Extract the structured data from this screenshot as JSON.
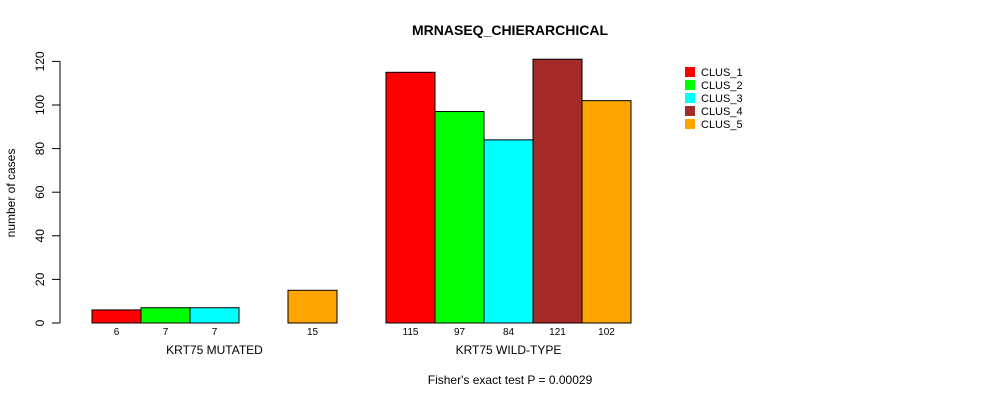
{
  "chart_data": {
    "type": "bar",
    "title": "MRNASEQ_CHIERARCHICAL",
    "ylabel": "number of cases",
    "xlabel": "",
    "ylim": [
      0,
      125
    ],
    "yticks": [
      0,
      20,
      40,
      60,
      80,
      100,
      120
    ],
    "grid": false,
    "legend_position": "right",
    "groups": [
      "KRT75 MUTATED",
      "KRT75 WILD-TYPE"
    ],
    "series": [
      {
        "name": "CLUS_1",
        "color": "#ff0000",
        "values": [
          6,
          115
        ],
        "value_labels": [
          "6",
          "115"
        ]
      },
      {
        "name": "CLUS_2",
        "color": "#00ff00",
        "values": [
          7,
          97
        ],
        "value_labels": [
          "7",
          "97"
        ]
      },
      {
        "name": "CLUS_3",
        "color": "#00ffff",
        "values": [
          7,
          84
        ],
        "value_labels": [
          "7",
          "84"
        ]
      },
      {
        "name": "CLUS_4",
        "color": "#a52a2a",
        "values": [
          0,
          121
        ],
        "value_labels": [
          "",
          "121"
        ]
      },
      {
        "name": "CLUS_5",
        "color": "#ffa500",
        "values": [
          15,
          102
        ],
        "value_labels": [
          "15",
          "102"
        ]
      }
    ],
    "footnote": "Fisher's exact test P = 0.00029"
  }
}
